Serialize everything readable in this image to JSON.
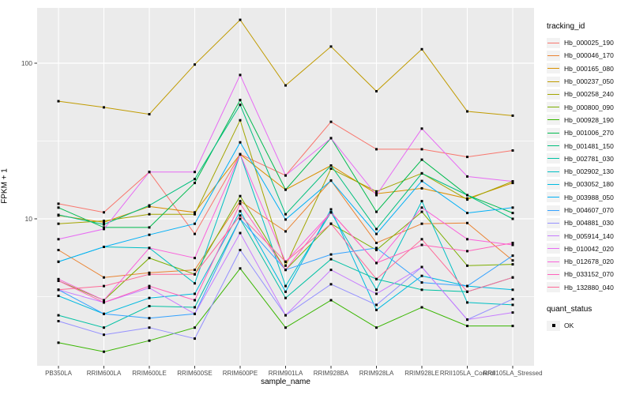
{
  "legend": {
    "tracking_title": "tracking_id",
    "quant_title": "quant_status",
    "quant_items": [
      {
        "label": "OK",
        "marker": "black-square"
      }
    ]
  },
  "axes": {
    "x_title": "sample_name",
    "y_title": "FPKM + 1",
    "y_tick_labels": [
      "100",
      "10"
    ]
  },
  "chart_data": {
    "type": "line",
    "title": "",
    "xlabel": "sample_name",
    "ylabel": "FPKM + 1",
    "y_scale": "log10",
    "y_ticks": [
      100,
      10
    ],
    "y_minor_breaks": [
      31.62,
      3.162
    ],
    "ylim": [
      1.1,
      230
    ],
    "grid": true,
    "legend_position": "right",
    "point_marker": "small black square (quant_status = OK)",
    "panel_color": "#EBEBEB",
    "x_categories": [
      "PB350LA",
      "RRIM600LA",
      "RRIM600LE",
      "RRIM600SE",
      "RRIM600PE",
      "RRIM901LA",
      "RRIM928BA",
      "RRIM928LA",
      "RRIM928LE",
      "RRII105LA_Control",
      "RRII105LA_Stressed"
    ],
    "series": [
      {
        "name": "Hb_000025_190",
        "color": "#F8766D",
        "values": [
          12.5,
          11,
          20,
          8,
          26,
          19,
          42,
          28,
          28,
          25,
          27.5
        ]
      },
      {
        "name": "Hb_000046_170",
        "color": "#EA8331",
        "values": [
          6.3,
          4.2,
          4.5,
          4.7,
          13,
          8.3,
          17.6,
          7.0,
          9.3,
          9.4,
          5.4
        ]
      },
      {
        "name": "Hb_000165_080",
        "color": "#D89000",
        "values": [
          10.5,
          9.5,
          12,
          11,
          26,
          15.4,
          22,
          14.5,
          15.7,
          13.5,
          17
        ]
      },
      {
        "name": "Hb_000237_050",
        "color": "#C09B00",
        "values": [
          57,
          52,
          47,
          98,
          190,
          72,
          128,
          66,
          123,
          49,
          46
        ]
      },
      {
        "name": "Hb_000258_240",
        "color": "#A3A500",
        "values": [
          9.3,
          9.7,
          10.7,
          10.7,
          43,
          5.0,
          21,
          15,
          19.6,
          13.3,
          17.4
        ]
      },
      {
        "name": "Hb_000800_090",
        "color": "#7CAE00",
        "values": [
          4.0,
          3.0,
          5.6,
          4.4,
          14,
          4.7,
          9.3,
          6.3,
          11.1,
          5.0,
          5.1
        ]
      },
      {
        "name": "Hb_000928_190",
        "color": "#39B600",
        "values": [
          1.6,
          1.4,
          1.65,
          2.0,
          4.8,
          2.0,
          3.0,
          2.0,
          2.7,
          2.05,
          2.05
        ]
      },
      {
        "name": "Hb_001006_270",
        "color": "#00BB4E",
        "values": [
          11.8,
          8.8,
          8.8,
          17,
          58,
          15.4,
          33,
          11.1,
          24,
          14.2,
          10.9
        ]
      },
      {
        "name": "Hb_001481_150",
        "color": "#00BF7D",
        "values": [
          10.6,
          9.2,
          12.2,
          18,
          54,
          10.7,
          22,
          8.6,
          19.6,
          14.2,
          10.0
        ]
      },
      {
        "name": "Hb_002781_030",
        "color": "#00C1A3",
        "values": [
          2.4,
          2.0,
          2.75,
          2.7,
          10,
          3.1,
          5.5,
          4.1,
          3.5,
          3.4,
          4.2
        ]
      },
      {
        "name": "Hb_002902_130",
        "color": "#00BFC4",
        "values": [
          5.3,
          6.6,
          6.5,
          3.85,
          26,
          3.7,
          11,
          3.5,
          13,
          2.9,
          2.8
        ]
      },
      {
        "name": "Hb_003052_180",
        "color": "#00BAE0",
        "values": [
          3.2,
          2.45,
          3.1,
          3.3,
          11.2,
          3.4,
          11.5,
          2.6,
          4.3,
          3.7,
          3.5
        ]
      },
      {
        "name": "Hb_003988_050",
        "color": "#00B0F6",
        "values": [
          5.3,
          6.6,
          7.9,
          9.3,
          31,
          9.9,
          17.6,
          8.0,
          17.5,
          10.9,
          11.8
        ]
      },
      {
        "name": "Hb_004607_070",
        "color": "#35A2FF",
        "values": [
          3.5,
          2.45,
          2.3,
          2.45,
          10,
          4.7,
          5.9,
          6.5,
          3.9,
          3.7,
          5.8
        ]
      },
      {
        "name": "Hb_004881_030",
        "color": "#9590FF",
        "values": [
          2.2,
          1.8,
          2.0,
          1.7,
          6.3,
          2.4,
          3.8,
          2.8,
          4.9,
          2.25,
          3.05
        ]
      },
      {
        "name": "Hb_005914_140",
        "color": "#C77CFF",
        "values": [
          3.5,
          2.9,
          3.6,
          2.45,
          8.1,
          2.4,
          4.7,
          3.3,
          4.9,
          2.25,
          2.5
        ]
      },
      {
        "name": "Hb_010042_020",
        "color": "#E76BF3",
        "values": [
          7.4,
          8.6,
          20,
          20,
          84,
          19,
          33,
          14.2,
          38,
          18.7,
          17.4
        ]
      },
      {
        "name": "Hb_012678_020",
        "color": "#FA62DB",
        "values": [
          4.1,
          3.0,
          6.5,
          5.6,
          26,
          5.3,
          11,
          5.2,
          11.8,
          7.4,
          6.8
        ]
      },
      {
        "name": "Hb_033152_070",
        "color": "#FF62BC",
        "values": [
          4.0,
          2.9,
          3.7,
          3.0,
          12.5,
          4.7,
          11,
          5.2,
          6.8,
          6.2,
          7.0
        ]
      },
      {
        "name": "Hb_132880_040",
        "color": "#FF6A98",
        "values": [
          3.5,
          3.7,
          4.4,
          4.4,
          10.5,
          5.3,
          9.3,
          4.1,
          7.4,
          3.4,
          4.2
        ]
      }
    ]
  }
}
